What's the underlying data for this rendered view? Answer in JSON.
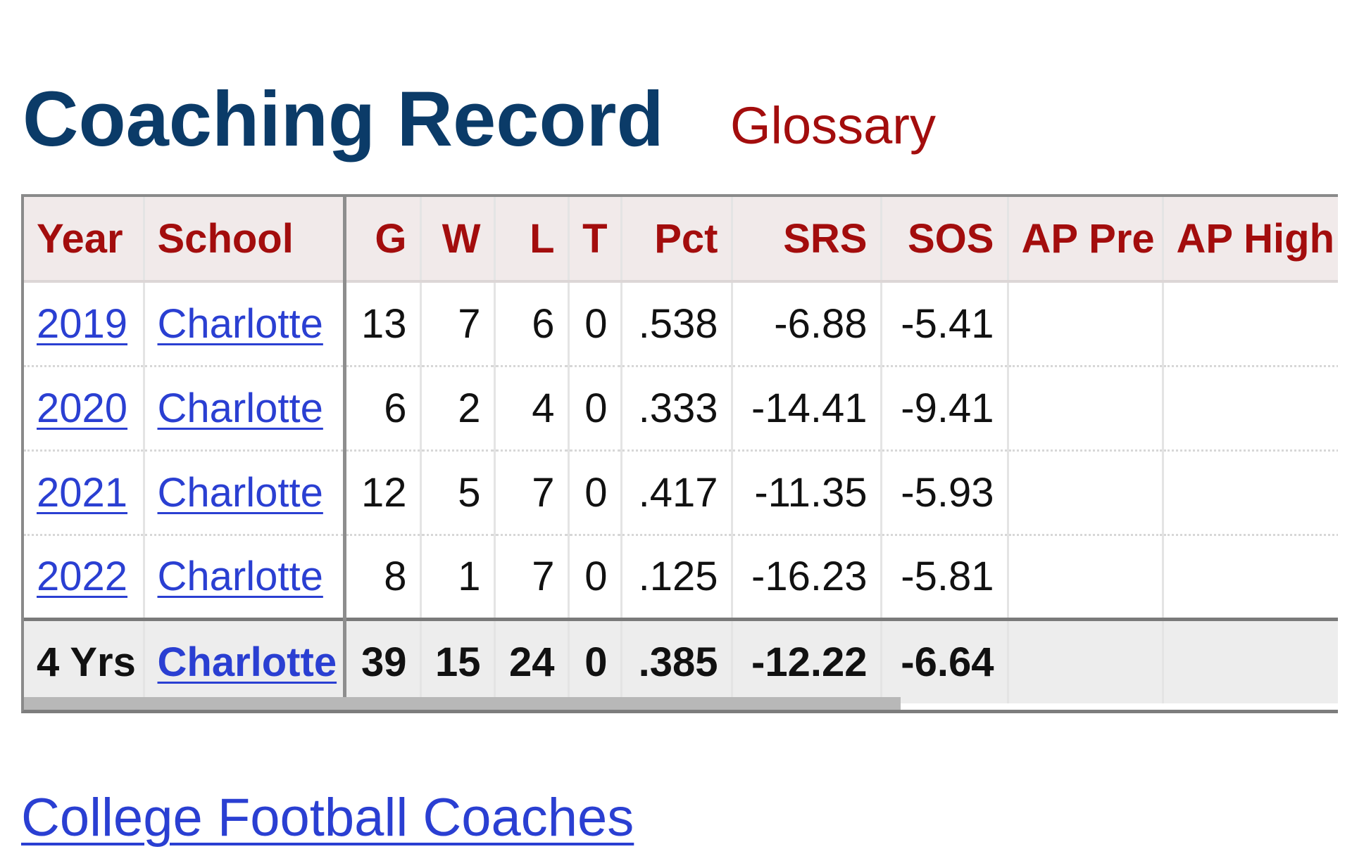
{
  "page": {
    "title": "Coaching Record",
    "glossary_label": "Glossary",
    "footer_link": "College Football Coaches"
  },
  "table": {
    "columns": [
      "Year",
      "School",
      "G",
      "W",
      "L",
      "T",
      "Pct",
      "SRS",
      "SOS",
      "AP Pre",
      "AP High"
    ],
    "rows": [
      [
        "2019",
        "Charlotte",
        "13",
        "7",
        "6",
        "0",
        ".538",
        "-6.88",
        "-5.41",
        "",
        ""
      ],
      [
        "2020",
        "Charlotte",
        "6",
        "2",
        "4",
        "0",
        ".333",
        "-14.41",
        "-9.41",
        "",
        ""
      ],
      [
        "2021",
        "Charlotte",
        "12",
        "5",
        "7",
        "0",
        ".417",
        "-11.35",
        "-5.93",
        "",
        ""
      ],
      [
        "2022",
        "Charlotte",
        "8",
        "1",
        "7",
        "0",
        ".125",
        "-16.23",
        "-5.81",
        "",
        ""
      ]
    ],
    "total": [
      "4 Yrs",
      "Charlotte",
      "39",
      "15",
      "24",
      "0",
      ".385",
      "-12.22",
      "-6.64",
      "",
      ""
    ]
  },
  "colors": {
    "title": "#0b3b68",
    "header_text": "#a30d0d",
    "link": "#2a3fd2",
    "header_bg": "#f1eaea",
    "total_bg": "#ededed"
  }
}
